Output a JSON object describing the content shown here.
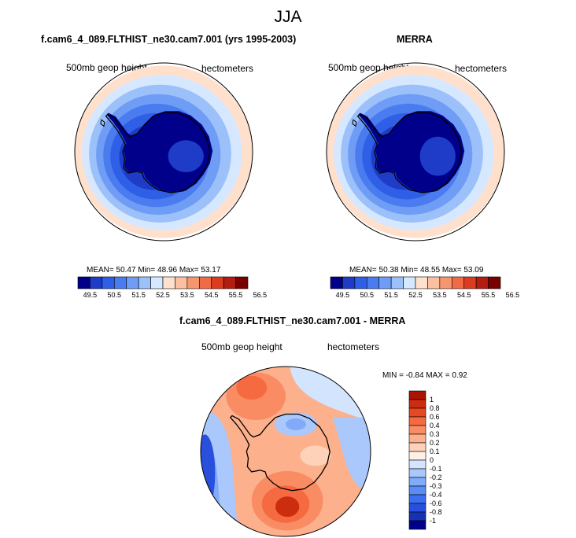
{
  "season": "JJA",
  "colors": {
    "mean_scale": [
      "#00008b",
      "#1e3cc8",
      "#2e5fe6",
      "#4a7cf0",
      "#6f9cf5",
      "#9cc0fa",
      "#d6e8ff",
      "#ffe0cc",
      "#fcc0a0",
      "#f7966e",
      "#f06a46",
      "#dc3c1e",
      "#b41c10",
      "#7a0000"
    ],
    "diff_scale": [
      "#00008b",
      "#1432b4",
      "#2850dc",
      "#3c6ef0",
      "#5a8cf7",
      "#82aafa",
      "#aac8fc",
      "#d2e4fe",
      "#fff0e6",
      "#fdd2b9",
      "#fcb08c",
      "#fa8c64",
      "#f56a41",
      "#e64823",
      "#cd2d0f",
      "#aa1400"
    ],
    "coastline": "#000000"
  },
  "chart_data": [
    {
      "id": "model",
      "type": "heatmap",
      "title": "f.cam6_4_089.FLTHIST_ne30.cam7.001 (yrs 1995-2003)",
      "left_label": "500mb geop height",
      "right_label": "hectometers",
      "stats": {
        "mean_label": "MEAN=",
        "mean": "50.47",
        "min_label": "Min=",
        "min": "48.96",
        "max_label": "Max=",
        "max": "53.17"
      },
      "colorbar_ticks": [
        "49.5",
        "50.5",
        "51.5",
        "52.5",
        "53.5",
        "54.5",
        "55.5",
        "56.5"
      ],
      "range": [
        48.96,
        53.17
      ]
    },
    {
      "id": "obs",
      "type": "heatmap",
      "title": "MERRA",
      "left_label": "500mb geop height",
      "right_label": "hectometers",
      "stats": {
        "mean_label": "MEAN=",
        "mean": "50.38",
        "min_label": "Min=",
        "min": "48.55",
        "max_label": "Max=",
        "max": "53.09"
      },
      "colorbar_ticks": [
        "49.5",
        "50.5",
        "51.5",
        "52.5",
        "53.5",
        "54.5",
        "55.5",
        "56.5"
      ],
      "range": [
        48.55,
        53.09
      ]
    },
    {
      "id": "diff",
      "type": "heatmap",
      "title": "f.cam6_4_089.FLTHIST_ne30.cam7.001 - MERRA",
      "left_label": "500mb geop height",
      "right_label": "hectometers",
      "stats": {
        "min_label": "MIN =",
        "min": "-0.84",
        "max_label": "MAX =",
        "max": "0.92"
      },
      "colorbar_ticks": [
        "1",
        "0.8",
        "0.6",
        "0.4",
        "0.3",
        "0.2",
        "0.1",
        "0",
        "-0.1",
        "-0.2",
        "-0.3",
        "-0.4",
        "-0.6",
        "-0.8",
        "-1"
      ],
      "range": [
        -0.84,
        0.92
      ]
    }
  ]
}
